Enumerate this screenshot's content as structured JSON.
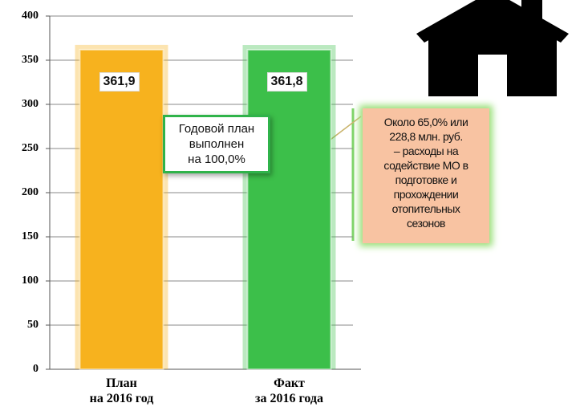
{
  "chart_data": {
    "type": "bar",
    "categories": [
      "План\nна 2016 год",
      "Факт\nза 2016 года"
    ],
    "values": [
      361.9,
      361.8
    ],
    "value_labels": [
      "361,9",
      "361,8"
    ],
    "colors": [
      "#f7b21e",
      "#3cbf4a"
    ],
    "ylim": [
      0,
      400
    ],
    "yticks": [
      0,
      50,
      100,
      150,
      200,
      250,
      300,
      350,
      400
    ],
    "grid": true,
    "annotations": [
      "Годовой план\nвыполнен\nна 100,0%",
      "Около 65,0% или\n228,8 млн. руб.\n– расходы на\nсодействие МО в\nподготовке и\nпрохождении\nотопительных\nсезонов"
    ]
  }
}
